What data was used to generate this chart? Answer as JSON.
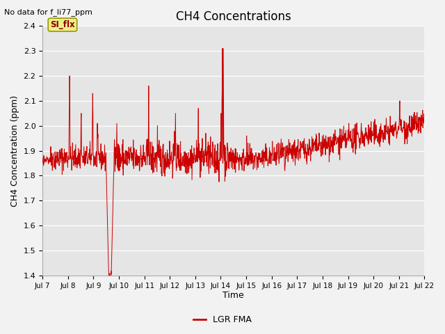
{
  "title": "CH4 Concentrations",
  "xlabel": "Time",
  "ylabel": "CH4 Concentration (ppm)",
  "top_left_text": "No data for f_li77_ppm",
  "annotation_text": "SI_flx",
  "legend_label": "LGR FMA",
  "ylim": [
    1.4,
    2.4
  ],
  "yticks": [
    1.4,
    1.5,
    1.6,
    1.7,
    1.8,
    1.9,
    2.0,
    2.1,
    2.2,
    2.3,
    2.4
  ],
  "line_color": "#cc0000",
  "bg_color": "#e5e5e5",
  "fig_bg_color": "#f2f2f2",
  "annotation_bg": "#eeee88",
  "annotation_border": "#999900",
  "annotation_text_color": "#880000"
}
